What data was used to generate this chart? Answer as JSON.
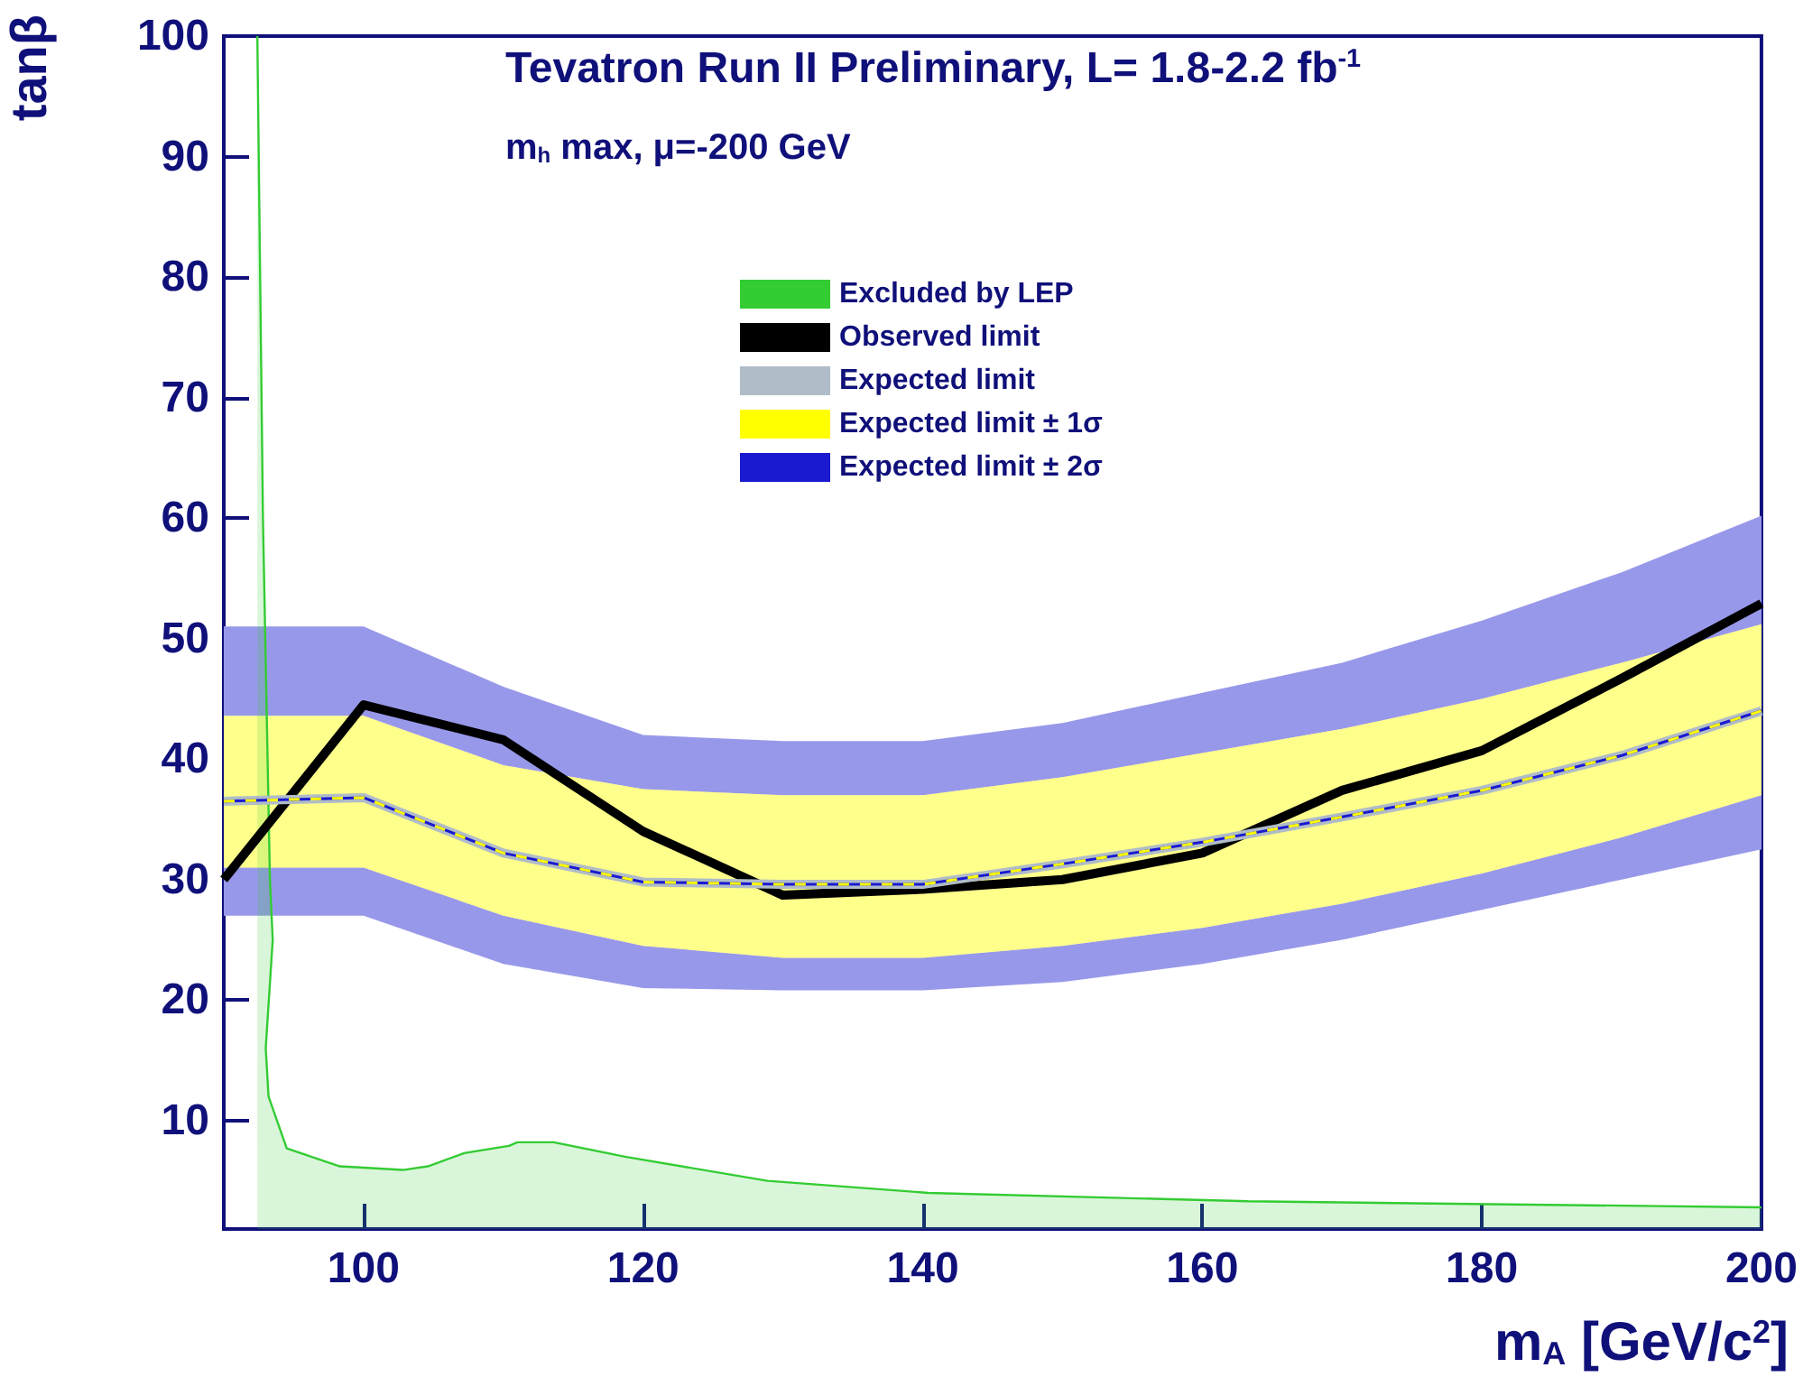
{
  "chart_data": {
    "type": "line",
    "title": "Tevatron Run II Preliminary, L= 1.8-2.2 fb$^{-1}$",
    "subtitle": "m$_{h}$ max, μ=-200 GeV",
    "xlabel": "m$_{A}$ [GeV/c$^{2}$]",
    "ylabel": "tanβ",
    "x": [
      90,
      100,
      110,
      120,
      130,
      140,
      150,
      160,
      170,
      180,
      190,
      200
    ],
    "series": [
      {
        "name": "Excluded by LEP",
        "type": "area",
        "color": "#33cc33",
        "x": [
          92.4,
          92.8,
          93.3,
          93.5,
          93,
          93.2,
          94.5,
          98.3,
          102.8,
          104.6,
          107.2,
          110.4,
          111,
          113.6,
          118.7,
          128.9,
          140.4,
          163.3,
          200
        ],
        "values": [
          100,
          60,
          30,
          25,
          16,
          12,
          7.7,
          6.2,
          5.9,
          6.2,
          7.3,
          7.9,
          8.2,
          8.2,
          7,
          5,
          4,
          3.3,
          2.8
        ]
      },
      {
        "name": "Observed limit",
        "color": "#000000",
        "values": [
          30,
          44.5,
          41.6,
          34,
          28.7,
          29.2,
          30,
          32.2,
          37.4,
          40.7,
          46.7,
          52.9
        ]
      },
      {
        "name": "Expected limit",
        "color": "#b0bcc8",
        "values": [
          36.5,
          36.8,
          32.2,
          29.8,
          29.6,
          29.6,
          31.3,
          33.1,
          35.2,
          37.4,
          40.3,
          44
        ]
      },
      {
        "name": "Expected limit ± 1σ",
        "line_style": "dashed",
        "color": "#ffff00",
        "values": [
          36.5,
          36.8,
          32.2,
          29.8,
          29.6,
          29.6,
          31.3,
          33.1,
          35.2,
          37.4,
          40.3,
          44
        ],
        "lower": [
          31,
          31,
          27,
          24.5,
          23.5,
          23.5,
          24.5,
          26,
          28,
          30.5,
          33.5,
          37
        ],
        "upper": [
          43.6,
          43.6,
          39.5,
          37.5,
          37,
          37,
          38.5,
          40.5,
          42.5,
          45,
          48,
          51.2
        ]
      },
      {
        "name": "Expected limit ± 2σ",
        "color": "#1a1ad0",
        "values": [
          36.5,
          36.8,
          32.2,
          29.8,
          29.6,
          29.6,
          31.3,
          33.1,
          35.2,
          37.4,
          40.3,
          44
        ],
        "lower": [
          27,
          27,
          23,
          21,
          20.8,
          20.8,
          21.5,
          23,
          25,
          27.5,
          30,
          32.5
        ],
        "upper": [
          51,
          51,
          46,
          42,
          41.5,
          41.5,
          43,
          45.5,
          48,
          51.5,
          55.5,
          60.2
        ]
      }
    ],
    "xlim": [
      90,
      200
    ],
    "xticks": [
      100,
      120,
      140,
      160,
      180,
      200
    ],
    "ylim": [
      1,
      100
    ],
    "yticks": [
      10,
      20,
      30,
      40,
      50,
      60,
      70,
      80,
      90,
      100
    ],
    "grid": false,
    "legend": "top"
  }
}
